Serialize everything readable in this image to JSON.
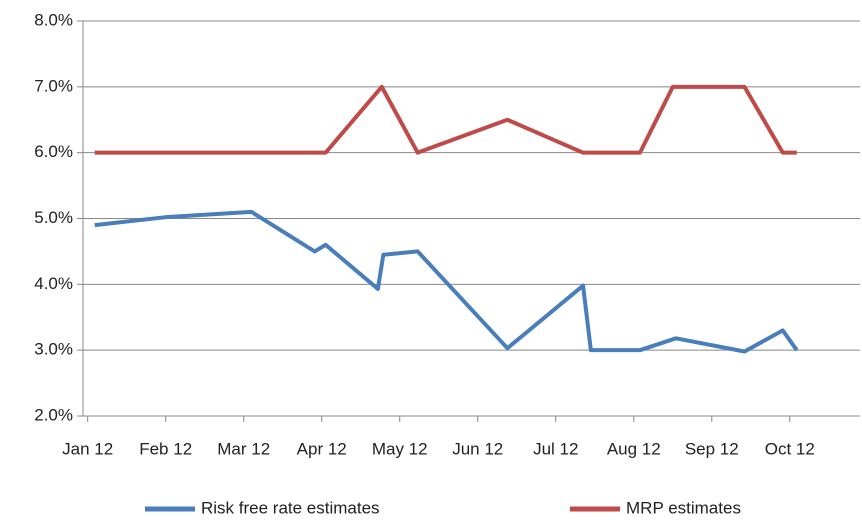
{
  "chart_data": {
    "type": "line",
    "series": [
      {
        "name": "Risk free rate estimates",
        "color": "#4a7ebb",
        "x": [
          0.09,
          1.0,
          2.1,
          2.91,
          3.05,
          3.72,
          3.79,
          4.23,
          5.38,
          6.35,
          6.45,
          7.08,
          7.54,
          8.42,
          8.91,
          9.09
        ],
        "values": [
          4.9,
          5.02,
          5.1,
          4.5,
          4.6,
          3.93,
          4.45,
          4.5,
          3.03,
          3.98,
          3.0,
          3.0,
          3.18,
          2.98,
          3.3,
          3.0
        ]
      },
      {
        "name": "MRP estimates",
        "color": "#be4b48",
        "x": [
          0.09,
          3.05,
          3.77,
          4.23,
          5.38,
          6.35,
          7.08,
          7.5,
          8.42,
          8.91,
          9.09
        ],
        "values": [
          6.0,
          6.0,
          7.0,
          6.0,
          6.5,
          6.0,
          6.0,
          7.0,
          7.0,
          6.0,
          6.0
        ]
      }
    ],
    "xlim": [
      -0.06,
      9.9
    ],
    "xticks": [
      {
        "value": 0,
        "label": "Jan 12"
      },
      {
        "value": 1,
        "label": "Feb 12"
      },
      {
        "value": 2,
        "label": "Mar 12"
      },
      {
        "value": 3,
        "label": "Apr 12"
      },
      {
        "value": 4,
        "label": "May 12"
      },
      {
        "value": 5,
        "label": "Jun 12"
      },
      {
        "value": 6,
        "label": "Jul 12"
      },
      {
        "value": 7,
        "label": "Aug 12"
      },
      {
        "value": 8,
        "label": "Sep 12"
      },
      {
        "value": 9,
        "label": "Oct 12"
      }
    ],
    "ylim": [
      2,
      8
    ],
    "yticks": [
      {
        "value": 2,
        "label": "2.0%"
      },
      {
        "value": 3,
        "label": "3.0%"
      },
      {
        "value": 4,
        "label": "4.0%"
      },
      {
        "value": 5,
        "label": "5.0%"
      },
      {
        "value": 6,
        "label": "6.0%"
      },
      {
        "value": 7,
        "label": "7.0%"
      },
      {
        "value": 8,
        "label": "8.0%"
      }
    ],
    "grid": true,
    "legend": "bottom"
  }
}
